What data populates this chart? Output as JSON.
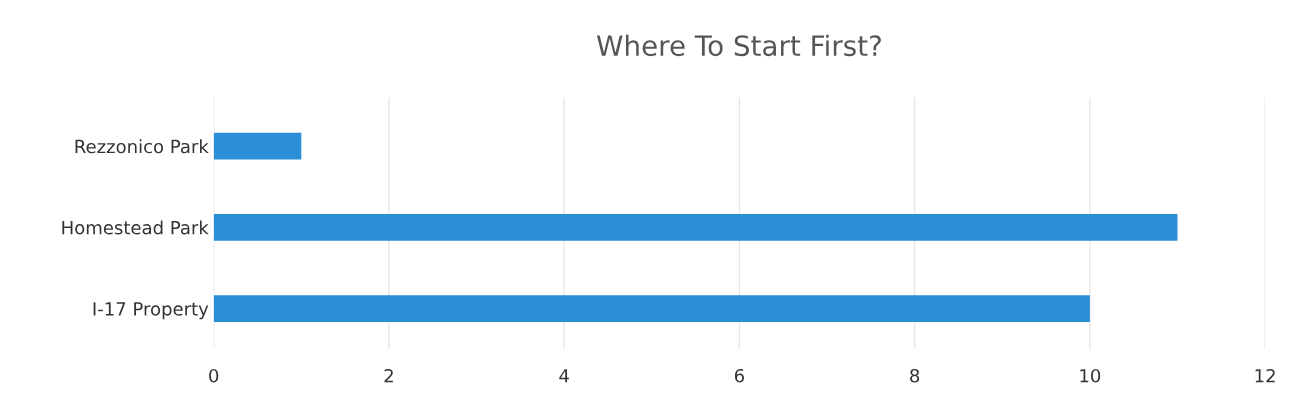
{
  "chart_data": {
    "type": "bar",
    "orientation": "horizontal",
    "title": "Where To Start First?",
    "categories": [
      "Rezzonico Park",
      "Homestead Park",
      "I-17 Property"
    ],
    "values": [
      1,
      11,
      10
    ],
    "color": "#2b8fd8",
    "xlim": [
      0,
      12
    ],
    "xticks": [
      0,
      2,
      4,
      6,
      8,
      10,
      12
    ],
    "grid": "x"
  }
}
